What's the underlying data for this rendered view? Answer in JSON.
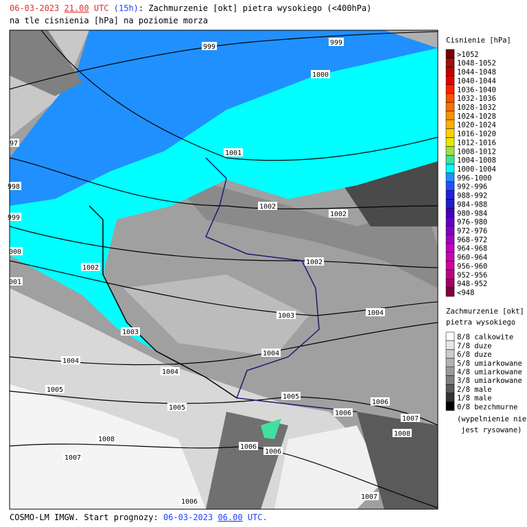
{
  "header": {
    "date": "06-03-2023",
    "time": "21.00",
    "utc": "UTC",
    "lead": "(15h)",
    "title": ": Zachmurzenie [okt] pietra wysokiego (<400hPa)",
    "subtitle": "na tle cisnienia [hPa] na poziomie morza"
  },
  "isobar_labels": [
    "999",
    "999",
    "1000",
    "1001",
    "1002",
    "1002",
    "1002",
    "1002",
    "1003",
    "1003",
    "1004",
    "1004",
    "1004",
    "1004",
    "1005",
    "1005",
    "1005",
    "1006",
    "1006",
    "1006",
    "1006",
    "1006",
    "1007",
    "1007",
    "1007",
    "1008",
    "1008",
    "97",
    "998",
    "999",
    "000",
    "001"
  ],
  "pressure_legend": {
    "title": "Cisnienie [hPa]",
    "items": [
      {
        "label": ">1052",
        "color": "#7a0000"
      },
      {
        "label": "1048-1052",
        "color": "#a01010"
      },
      {
        "label": "1044-1048",
        "color": "#c00000"
      },
      {
        "label": "1040-1044",
        "color": "#e00000"
      },
      {
        "label": "1036-1040",
        "color": "#ff2000"
      },
      {
        "label": "1032-1036",
        "color": "#ff5000"
      },
      {
        "label": "1028-1032",
        "color": "#ff7000"
      },
      {
        "label": "1024-1028",
        "color": "#ff9000"
      },
      {
        "label": "1020-1024",
        "color": "#ffb000"
      },
      {
        "label": "1016-1020",
        "color": "#ffd000"
      },
      {
        "label": "1012-1016",
        "color": "#e8e800"
      },
      {
        "label": "1008-1012",
        "color": "#a0e040"
      },
      {
        "label": "1004-1008",
        "color": "#40e0a0"
      },
      {
        "label": "1000-1004",
        "color": "#00ffff"
      },
      {
        "label": "996-1000",
        "color": "#2090ff"
      },
      {
        "label": "992-996",
        "color": "#2050ff"
      },
      {
        "label": "988-992",
        "color": "#2020e0"
      },
      {
        "label": "984-988",
        "color": "#2020c0"
      },
      {
        "label": "980-984",
        "color": "#4000c0"
      },
      {
        "label": "976-980",
        "color": "#6000c0"
      },
      {
        "label": "972-976",
        "color": "#8000c0"
      },
      {
        "label": "968-972",
        "color": "#a000c0"
      },
      {
        "label": "964-968",
        "color": "#c000c0"
      },
      {
        "label": "960-964",
        "color": "#d000b0"
      },
      {
        "label": "956-960",
        "color": "#d000a0"
      },
      {
        "label": "952-956",
        "color": "#c00080"
      },
      {
        "label": "948-952",
        "color": "#a00060"
      },
      {
        "label": "<948",
        "color": "#800040"
      }
    ]
  },
  "cloud_legend": {
    "title": "Zachmurzenie [okt]",
    "subtitle": "pietra wysokiego",
    "items": [
      {
        "label": "8/8 calkowite",
        "color": "#ffffff"
      },
      {
        "label": "7/8 duze",
        "color": "#e6e6e6"
      },
      {
        "label": "6/8 duze",
        "color": "#cccccc"
      },
      {
        "label": "5/8 umiarkowane",
        "color": "#b3b3b3"
      },
      {
        "label": "4/8 umiarkowane",
        "color": "#999999"
      },
      {
        "label": "3/8 umiarkowane",
        "color": "#808080"
      },
      {
        "label": "2/8 male",
        "color": "#595959"
      },
      {
        "label": "1/8 male",
        "color": "#333333"
      },
      {
        "label": "0/8 bezchmurne",
        "color": "#000000"
      }
    ],
    "note": [
      "(wypelnienie nie",
      "jest rysowane)"
    ]
  },
  "footer": {
    "model": "COSMO-LM IMGW. Start prognozy: ",
    "date": "06-03-2023",
    "time": "06.00",
    "utc": "UTC."
  }
}
